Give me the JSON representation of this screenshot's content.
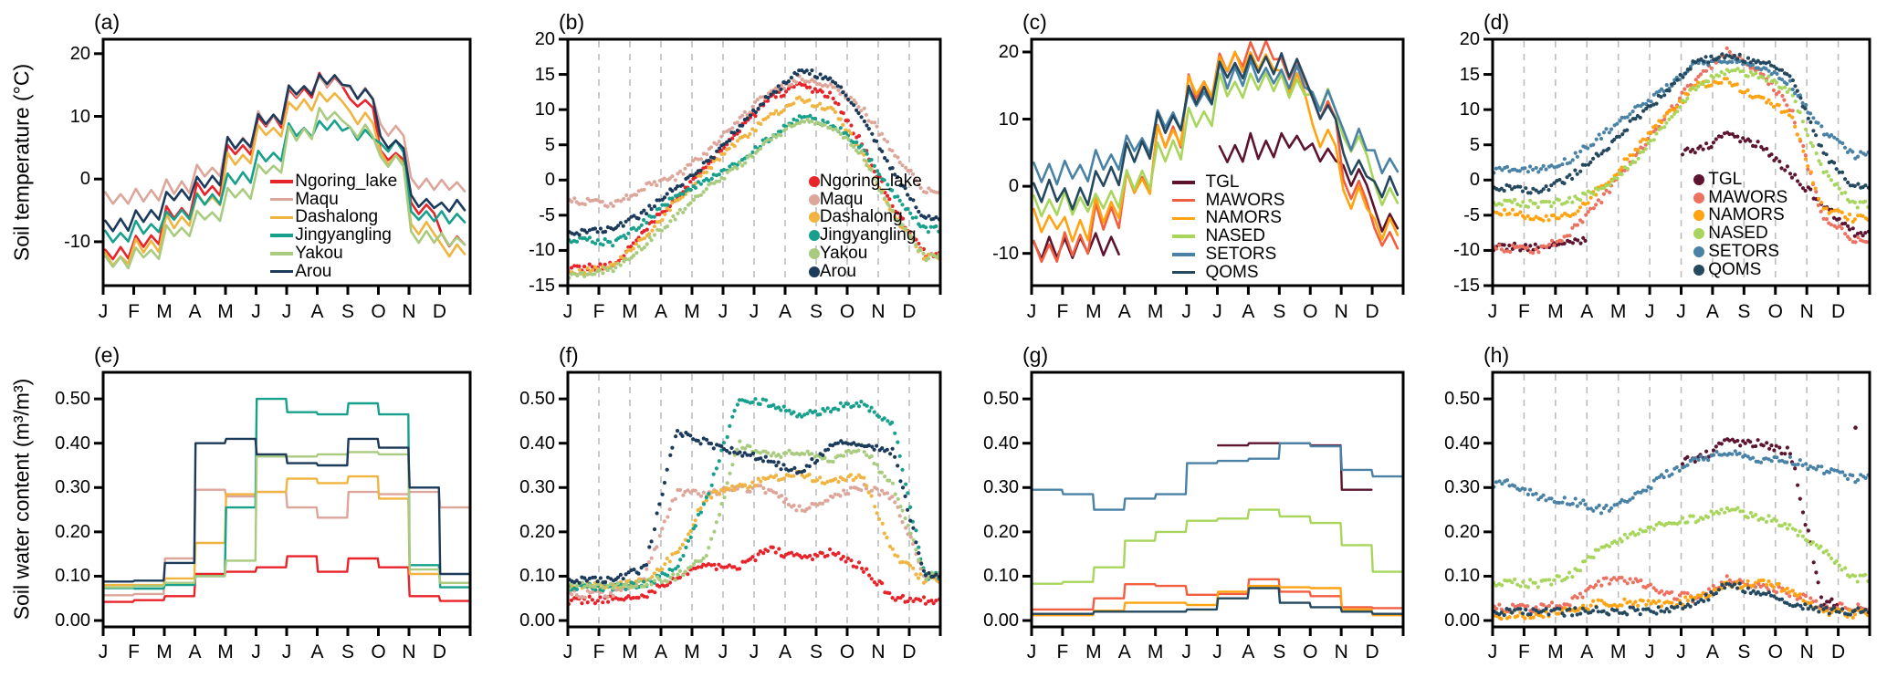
{
  "labels": {
    "row_titles": [
      "Soil temperature (°C)",
      "Soil water content (m³/m³)"
    ],
    "months": [
      "J",
      "F",
      "M",
      "A",
      "M",
      "J",
      "J",
      "A",
      "S",
      "O",
      "N",
      "D"
    ],
    "panel_letters": [
      "(a)",
      "(b)",
      "(c)",
      "(d)",
      "(e)",
      "(f)",
      "(g)",
      "(h)"
    ]
  },
  "chart_data": [
    {
      "panel": "a",
      "type": "line",
      "line_mode": "sawtooth",
      "grid": false,
      "legend": "line",
      "ylabel": "Soil temperature (°C)",
      "ylim": [
        -17,
        22.3
      ],
      "yticks": [
        20,
        10,
        0,
        -10
      ],
      "ytick_labels": [
        "20",
        "10",
        "0",
        "-10"
      ],
      "wiggle": 1.3,
      "series": [
        {
          "name": "Ngoring_lake",
          "color": "#e8242b",
          "values": [
            -12,
            -10,
            -5.5,
            -2,
            4.5,
            9,
            13.5,
            15.5,
            12,
            3.5,
            -5,
            -10
          ]
        },
        {
          "name": "Maqu",
          "color": "#dda69b",
          "values": [
            -3.5,
            -2.8,
            -1.5,
            1,
            5.5,
            9.5,
            14,
            15.5,
            13.5,
            7.5,
            -1,
            -1.2
          ]
        },
        {
          "name": "Dashalong",
          "color": "#f0b440",
          "values": [
            -13,
            -11,
            -7,
            -3.5,
            3,
            7.5,
            11.5,
            13,
            9.5,
            3,
            -8,
            -11.5
          ]
        },
        {
          "name": "Jingyangling",
          "color": "#17a08c",
          "values": [
            -9.5,
            -8,
            -6,
            -3.5,
            0,
            3.5,
            7.5,
            8.5,
            7,
            5,
            -6,
            -6.3
          ]
        },
        {
          "name": "Yakou",
          "color": "#a9cb7f",
          "values": [
            -13.5,
            -12,
            -8.5,
            -6,
            -2.5,
            1.5,
            7,
            10,
            7.5,
            2.7,
            -9.5,
            -10
          ]
        },
        {
          "name": "Arou",
          "color": "#1c3a5a",
          "values": [
            -7.5,
            -6,
            -2.8,
            -0.5,
            5.5,
            9.5,
            14,
            15.8,
            13.5,
            5.5,
            -4,
            -4.5
          ]
        }
      ]
    },
    {
      "panel": "b",
      "type": "scatter",
      "grid": true,
      "legend": "dot",
      "ylabel": "Soil temperature (°C)",
      "ylim": [
        -15,
        20
      ],
      "yticks": [
        20,
        15,
        10,
        5,
        0,
        -5,
        -10,
        -15
      ],
      "ytick_labels": [
        "20",
        "15",
        "10",
        "5",
        "0",
        "-5",
        "-10",
        "-15"
      ],
      "jitter": 0.45,
      "series": [
        {
          "name": "Ngoring_lake",
          "color": "#e8242b",
          "values": [
            -12.5,
            -12,
            -7,
            -2.5,
            2,
            7,
            11.5,
            13.5,
            12,
            5,
            -4,
            -10.5
          ]
        },
        {
          "name": "Maqu",
          "color": "#dda69b",
          "values": [
            -3,
            -3.5,
            -1,
            0.5,
            4,
            8.5,
            12.5,
            14.5,
            13.5,
            10,
            4,
            -1.5
          ]
        },
        {
          "name": "Dashalong",
          "color": "#f0b440",
          "values": [
            -13,
            -12,
            -8,
            -3,
            1.5,
            5.5,
            9,
            11.5,
            10,
            4,
            -5,
            -11
          ]
        },
        {
          "name": "Jingyangling",
          "color": "#17a08c",
          "values": [
            -8.5,
            -9,
            -6,
            -2,
            0,
            2.5,
            6,
            9,
            8,
            4.5,
            -2,
            -7
          ]
        },
        {
          "name": "Yakou",
          "color": "#a9cb7f",
          "values": [
            -13.5,
            -12.5,
            -9,
            -5,
            -1,
            2,
            5.5,
            8.5,
            7.5,
            3.5,
            -5,
            -11
          ]
        },
        {
          "name": "Arou",
          "color": "#1c3a5a",
          "values": [
            -7.5,
            -7,
            -4.5,
            -1,
            2.5,
            7.5,
            12,
            15.5,
            14.5,
            9,
            1,
            -5.5
          ]
        }
      ]
    },
    {
      "panel": "c",
      "type": "line",
      "line_mode": "sawtooth",
      "grid": false,
      "legend": "line",
      "ylabel": "Soil temperature (°C)",
      "ylim": [
        -14.8,
        21.9
      ],
      "yticks": [
        20,
        10,
        0,
        -10
      ],
      "ytick_labels": [
        "20",
        "10",
        "0",
        "-10"
      ],
      "wiggle": 2.2,
      "series": [
        {
          "name": "TGL",
          "color": "#5c1430",
          "values": [
            -9.5,
            -9.3,
            -9,
            null,
            null,
            null,
            4.5,
            5.5,
            6.5,
            4.5,
            1,
            -5.5
          ]
        },
        {
          "name": "MAWORS",
          "color": "#f25f40",
          "values": [
            -10.5,
            -9,
            -5,
            0,
            7,
            14.5,
            18.5,
            20,
            17,
            11,
            -1,
            -8
          ]
        },
        {
          "name": "NAMORS",
          "color": "#ffa312",
          "values": [
            -5.5,
            -7,
            -4,
            0,
            7,
            14.5,
            18,
            18.5,
            15,
            7,
            -2,
            -6.5
          ]
        },
        {
          "name": "NASED",
          "color": "#a8d65c",
          "values": [
            -3.5,
            -3,
            -2.5,
            0.5,
            5,
            10,
            14.5,
            15.5,
            14.5,
            12.5,
            6,
            -1.5
          ]
        },
        {
          "name": "SETORS",
          "color": "#4a82a6",
          "values": [
            1.5,
            2,
            3.5,
            6,
            9.5,
            13,
            16,
            16.5,
            16,
            12.5,
            6.5,
            3
          ]
        },
        {
          "name": "QOMS",
          "color": "#24485e",
          "values": [
            -1,
            -2,
            1,
            5,
            9,
            13.5,
            17,
            18,
            17.5,
            11,
            2.5,
            -0.5
          ]
        }
      ]
    },
    {
      "panel": "d",
      "type": "scatter",
      "grid": true,
      "legend": "dot",
      "ylabel": "Soil temperature (°C)",
      "ylim": [
        -15,
        20
      ],
      "yticks": [
        20,
        15,
        10,
        5,
        0,
        -5,
        -10,
        -15
      ],
      "ytick_labels": [
        "20",
        "15",
        "10",
        "5",
        "0",
        "-5",
        "-10",
        "-15"
      ],
      "jitter": 0.5,
      "series": [
        {
          "name": "TGL",
          "color": "#5c1430",
          "values": [
            -9.5,
            -9.5,
            -8.7,
            null,
            null,
            null,
            4,
            6.5,
            5,
            1,
            -3.5,
            -7.5
          ]
        },
        {
          "name": "MAWORS",
          "color": "#ed7160",
          "values": [
            -9.7,
            -10,
            -7.5,
            -2.5,
            3,
            9,
            14.5,
            18.5,
            15.5,
            10,
            -5,
            -8.5
          ]
        },
        {
          "name": "NAMORS",
          "color": "#ffa312",
          "values": [
            -4.5,
            -5.5,
            -5,
            -1,
            4,
            9,
            13.5,
            14,
            11.5,
            9.5,
            -4,
            -5.5
          ]
        },
        {
          "name": "NASED",
          "color": "#a8d65c",
          "values": [
            -3.2,
            -3.5,
            -3,
            -1,
            2.5,
            8,
            13.5,
            15.5,
            15,
            12.5,
            1.5,
            -3.5
          ]
        },
        {
          "name": "SETORS",
          "color": "#4a82a6",
          "values": [
            1.5,
            1.6,
            3,
            6.5,
            10,
            13,
            16.5,
            17,
            16,
            13.5,
            7,
            3.5
          ]
        },
        {
          "name": "QOMS",
          "color": "#24485e",
          "values": [
            -1.2,
            -1.8,
            0.5,
            4,
            8.5,
            12.5,
            17,
            17.5,
            17,
            15,
            4,
            -1
          ]
        }
      ]
    },
    {
      "panel": "e",
      "type": "line",
      "line_mode": "step",
      "grid": false,
      "legend": null,
      "ylabel": "Soil water content (m³/m³)",
      "ylim": [
        -0.0144,
        0.56
      ],
      "yticks": [
        0.5,
        0.4,
        0.3,
        0.2,
        0.1,
        0.0
      ],
      "ytick_labels": [
        "0.50",
        "0.40",
        "0.30",
        "0.20",
        "0.10",
        "0.00"
      ],
      "series": [
        {
          "name": "Ngoring_lake",
          "color": "#e8242b",
          "values": [
            0.042,
            0.046,
            0.055,
            0.105,
            0.11,
            0.12,
            0.145,
            0.11,
            0.14,
            0.12,
            0.055,
            0.044
          ]
        },
        {
          "name": "Maqu",
          "color": "#dda69b",
          "values": [
            0.057,
            0.06,
            0.14,
            0.295,
            0.28,
            0.29,
            0.255,
            0.232,
            0.29,
            0.285,
            0.29,
            0.255
          ]
        },
        {
          "name": "Dashalong",
          "color": "#f0b440",
          "values": [
            0.08,
            0.08,
            0.095,
            0.175,
            0.285,
            0.29,
            0.32,
            0.31,
            0.325,
            0.275,
            0.105,
            0.085
          ]
        },
        {
          "name": "Jingyangling",
          "color": "#17a08c",
          "values": [
            0.073,
            0.072,
            0.08,
            0.1,
            0.255,
            0.5,
            0.47,
            0.465,
            0.49,
            0.465,
            0.125,
            0.075
          ]
        },
        {
          "name": "Yakou",
          "color": "#a9cb7f",
          "values": [
            0.075,
            0.078,
            0.085,
            0.1,
            0.135,
            0.37,
            0.37,
            0.375,
            0.38,
            0.375,
            0.115,
            0.085
          ]
        },
        {
          "name": "Arou",
          "color": "#1c3a5a",
          "values": [
            0.088,
            0.09,
            0.13,
            0.4,
            0.41,
            0.375,
            0.355,
            0.35,
            0.41,
            0.39,
            0.3,
            0.105
          ]
        }
      ]
    },
    {
      "panel": "f",
      "type": "scatter",
      "grid": true,
      "legend": null,
      "ylabel": "Soil water content (m³/m³)",
      "ylim": [
        -0.0144,
        0.56
      ],
      "yticks": [
        0.5,
        0.4,
        0.3,
        0.2,
        0.1,
        0.0
      ],
      "ytick_labels": [
        "0.50",
        "0.40",
        "0.30",
        "0.20",
        "0.10",
        "0.00"
      ],
      "jitter": 0.008,
      "series": [
        {
          "name": "Ngoring_lake",
          "color": "#e8242b",
          "values": [
            0.045,
            0.05,
            0.055,
            0.1,
            0.125,
            0.12,
            0.16,
            0.14,
            0.155,
            0.12,
            0.05,
            0.045
          ]
        },
        {
          "name": "Maqu",
          "color": "#dda69b",
          "values": [
            0.06,
            0.06,
            0.1,
            0.29,
            0.285,
            0.3,
            0.295,
            0.25,
            0.28,
            0.3,
            0.28,
            0.1
          ]
        },
        {
          "name": "Dashalong",
          "color": "#f0b440",
          "values": [
            0.08,
            0.08,
            0.09,
            0.15,
            0.28,
            0.3,
            0.32,
            0.33,
            0.31,
            0.33,
            0.15,
            0.09
          ]
        },
        {
          "name": "Jingyangling",
          "color": "#17a08c",
          "values": [
            0.075,
            0.075,
            0.08,
            0.12,
            0.28,
            0.5,
            0.49,
            0.46,
            0.48,
            0.49,
            0.44,
            0.1
          ]
        },
        {
          "name": "Yakou",
          "color": "#a9cb7f",
          "values": [
            0.08,
            0.08,
            0.085,
            0.1,
            0.15,
            0.4,
            0.37,
            0.38,
            0.36,
            0.39,
            0.3,
            0.1
          ]
        },
        {
          "name": "Arou",
          "color": "#1c3a5a",
          "values": [
            0.09,
            0.09,
            0.12,
            0.43,
            0.4,
            0.38,
            0.36,
            0.33,
            0.4,
            0.4,
            0.38,
            0.1
          ]
        }
      ]
    },
    {
      "panel": "g",
      "type": "line",
      "line_mode": "step",
      "grid": false,
      "legend": null,
      "ylabel": "Soil water content (m³/m³)",
      "ylim": [
        -0.0144,
        0.56
      ],
      "yticks": [
        0.5,
        0.4,
        0.3,
        0.2,
        0.1,
        0.0
      ],
      "ytick_labels": [
        "0.50",
        "0.40",
        "0.30",
        "0.20",
        "0.10",
        "0.00"
      ],
      "series": [
        {
          "name": "TGL",
          "color": "#5c1430",
          "values": [
            null,
            null,
            null,
            null,
            null,
            null,
            0.395,
            0.4,
            0.4,
            0.395,
            0.295,
            null
          ]
        },
        {
          "name": "MAWORS",
          "color": "#f25f40",
          "values": [
            0.025,
            0.025,
            0.05,
            0.082,
            0.078,
            0.058,
            0.06,
            0.093,
            0.065,
            0.055,
            0.03,
            0.028
          ]
        },
        {
          "name": "NAMORS",
          "color": "#ffa312",
          "values": [
            0.012,
            0.012,
            0.022,
            0.04,
            0.04,
            0.035,
            0.065,
            0.078,
            0.075,
            0.073,
            0.025,
            0.012
          ]
        },
        {
          "name": "NASED",
          "color": "#a8d65c",
          "values": [
            0.083,
            0.087,
            0.12,
            0.18,
            0.2,
            0.225,
            0.23,
            0.25,
            0.235,
            0.22,
            0.17,
            0.11
          ]
        },
        {
          "name": "SETORS",
          "color": "#4a82a6",
          "values": [
            0.295,
            0.285,
            0.25,
            0.275,
            0.285,
            0.355,
            0.36,
            0.365,
            0.4,
            0.393,
            0.34,
            0.325
          ]
        },
        {
          "name": "QOMS",
          "color": "#24485e",
          "values": [
            0.015,
            0.015,
            0.02,
            0.02,
            0.02,
            0.025,
            0.05,
            0.073,
            0.04,
            0.03,
            0.02,
            0.015
          ]
        }
      ]
    },
    {
      "panel": "h",
      "type": "scatter",
      "grid": true,
      "legend": null,
      "ylabel": "Soil water content (m³/m³)",
      "ylim": [
        -0.0144,
        0.56
      ],
      "yticks": [
        0.5,
        0.4,
        0.3,
        0.2,
        0.1,
        0.0
      ],
      "ytick_labels": [
        "0.50",
        "0.40",
        "0.30",
        "0.20",
        "0.10",
        "0.00"
      ],
      "jitter": 0.009,
      "series": [
        {
          "name": "TGL",
          "color": "#5c1430",
          "values": [
            null,
            null,
            null,
            null,
            null,
            null,
            0.36,
            0.405,
            0.4,
            0.38,
            0.04,
            null
          ],
          "extra": [
            [
              11.55,
              0.435
            ]
          ]
        },
        {
          "name": "MAWORS",
          "color": "#ed7160",
          "values": [
            0.028,
            0.028,
            0.04,
            0.09,
            0.09,
            0.06,
            0.05,
            0.095,
            0.08,
            0.06,
            0.035,
            0.03
          ]
        },
        {
          "name": "NAMORS",
          "color": "#ffa312",
          "values": [
            0.012,
            0.012,
            0.025,
            0.04,
            0.04,
            0.035,
            0.05,
            0.08,
            0.085,
            0.07,
            0.02,
            0.015
          ]
        },
        {
          "name": "NASED",
          "color": "#a8d65c",
          "values": [
            0.085,
            0.082,
            0.1,
            0.17,
            0.195,
            0.22,
            0.23,
            0.25,
            0.235,
            0.21,
            0.16,
            0.095
          ]
        },
        {
          "name": "SETORS",
          "color": "#4a82a6",
          "values": [
            0.31,
            0.28,
            0.27,
            0.25,
            0.28,
            0.33,
            0.36,
            0.38,
            0.36,
            0.36,
            0.34,
            0.32
          ]
        },
        {
          "name": "QOMS",
          "color": "#24485e",
          "values": [
            0.018,
            0.018,
            0.02,
            0.022,
            0.022,
            0.025,
            0.04,
            0.08,
            0.065,
            0.04,
            0.025,
            0.02
          ]
        }
      ]
    }
  ]
}
